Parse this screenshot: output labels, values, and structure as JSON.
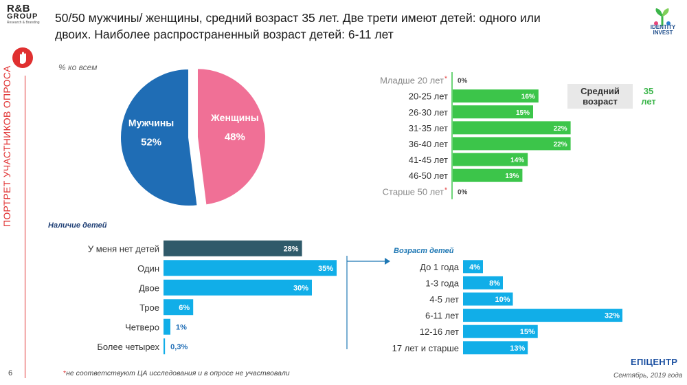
{
  "logo_left": {
    "line1": "R&B",
    "line2": "GROUP",
    "line3": "Research & Branding"
  },
  "logo_right": {
    "line1": "IDENTITY",
    "line2": "INVEST"
  },
  "headline": {
    "line1": "50/50 мужчины/ женщины, средний возраст 35 лет. Две трети имеют детей: одного или",
    "line2": "двоих.  Наиболее распространенный возраст детей: 6-11 лет"
  },
  "side_title": "ПОРТРЕТ УЧАСТНИКОВ ОПРОСА",
  "subtitle": "% ко всем",
  "summary": {
    "label_line1": "Средний",
    "label_line2": "возраст",
    "value_line1": "35",
    "value_line2": "лет"
  },
  "section_children": "Наличие детей",
  "section_kids_age": "Возраст детей",
  "footnote_mark": "*",
  "footnote": "не соответствуют ЦА исследования и в опросе не участвовали",
  "page_number": "6",
  "footer_logo": "ЕПІЦЕНТР",
  "footer_date": "Сентябрь, 2019 года",
  "colors": {
    "male": "#1f6db5",
    "female": "#f07096",
    "green": "#3cc54a",
    "dark_teal": "#2f5a6a",
    "sky": "#11aee8",
    "axis_green": "#3cc54a"
  },
  "chart_data": [
    {
      "type": "pie",
      "labels": [
        "Мужчины",
        "Женщины"
      ],
      "values": [
        52,
        48
      ],
      "value_labels": [
        "52%",
        "48%"
      ],
      "exploded": "Женщины"
    },
    {
      "type": "bar",
      "orientation": "horizontal",
      "categories": [
        "Младше 20 лет",
        "20-25 лет",
        "26-30 лет",
        "31-35 лет",
        "36-40 лет",
        "41-45 лет",
        "46-50 лет",
        "Старше 50 лет"
      ],
      "asterisk": [
        true,
        false,
        false,
        false,
        false,
        false,
        false,
        true
      ],
      "values": [
        0,
        16,
        15,
        22,
        22,
        14,
        13,
        0
      ],
      "value_labels": [
        "0%",
        "16%",
        "15%",
        "22%",
        "22%",
        "14%",
        "13%",
        "0%"
      ]
    },
    {
      "type": "bar",
      "orientation": "horizontal",
      "title": "Наличие детей",
      "categories": [
        "У меня нет детей",
        "Один",
        "Двое",
        "Трое",
        "Четверо",
        "Более четырех"
      ],
      "values": [
        28,
        35,
        30,
        6,
        1,
        0.3
      ],
      "value_labels": [
        "28%",
        "35%",
        "30%",
        "6%",
        "1%",
        "0,3%"
      ]
    },
    {
      "type": "bar",
      "orientation": "horizontal",
      "title": "Возраст детей",
      "categories": [
        "До 1 года",
        "1-3 года",
        "4-5 лет",
        "6-11 лет",
        "12-16 лет",
        "17 лет и старше"
      ],
      "values": [
        4,
        8,
        10,
        32,
        15,
        13
      ],
      "value_labels": [
        "4%",
        "8%",
        "10%",
        "32%",
        "15%",
        "13%"
      ]
    }
  ]
}
